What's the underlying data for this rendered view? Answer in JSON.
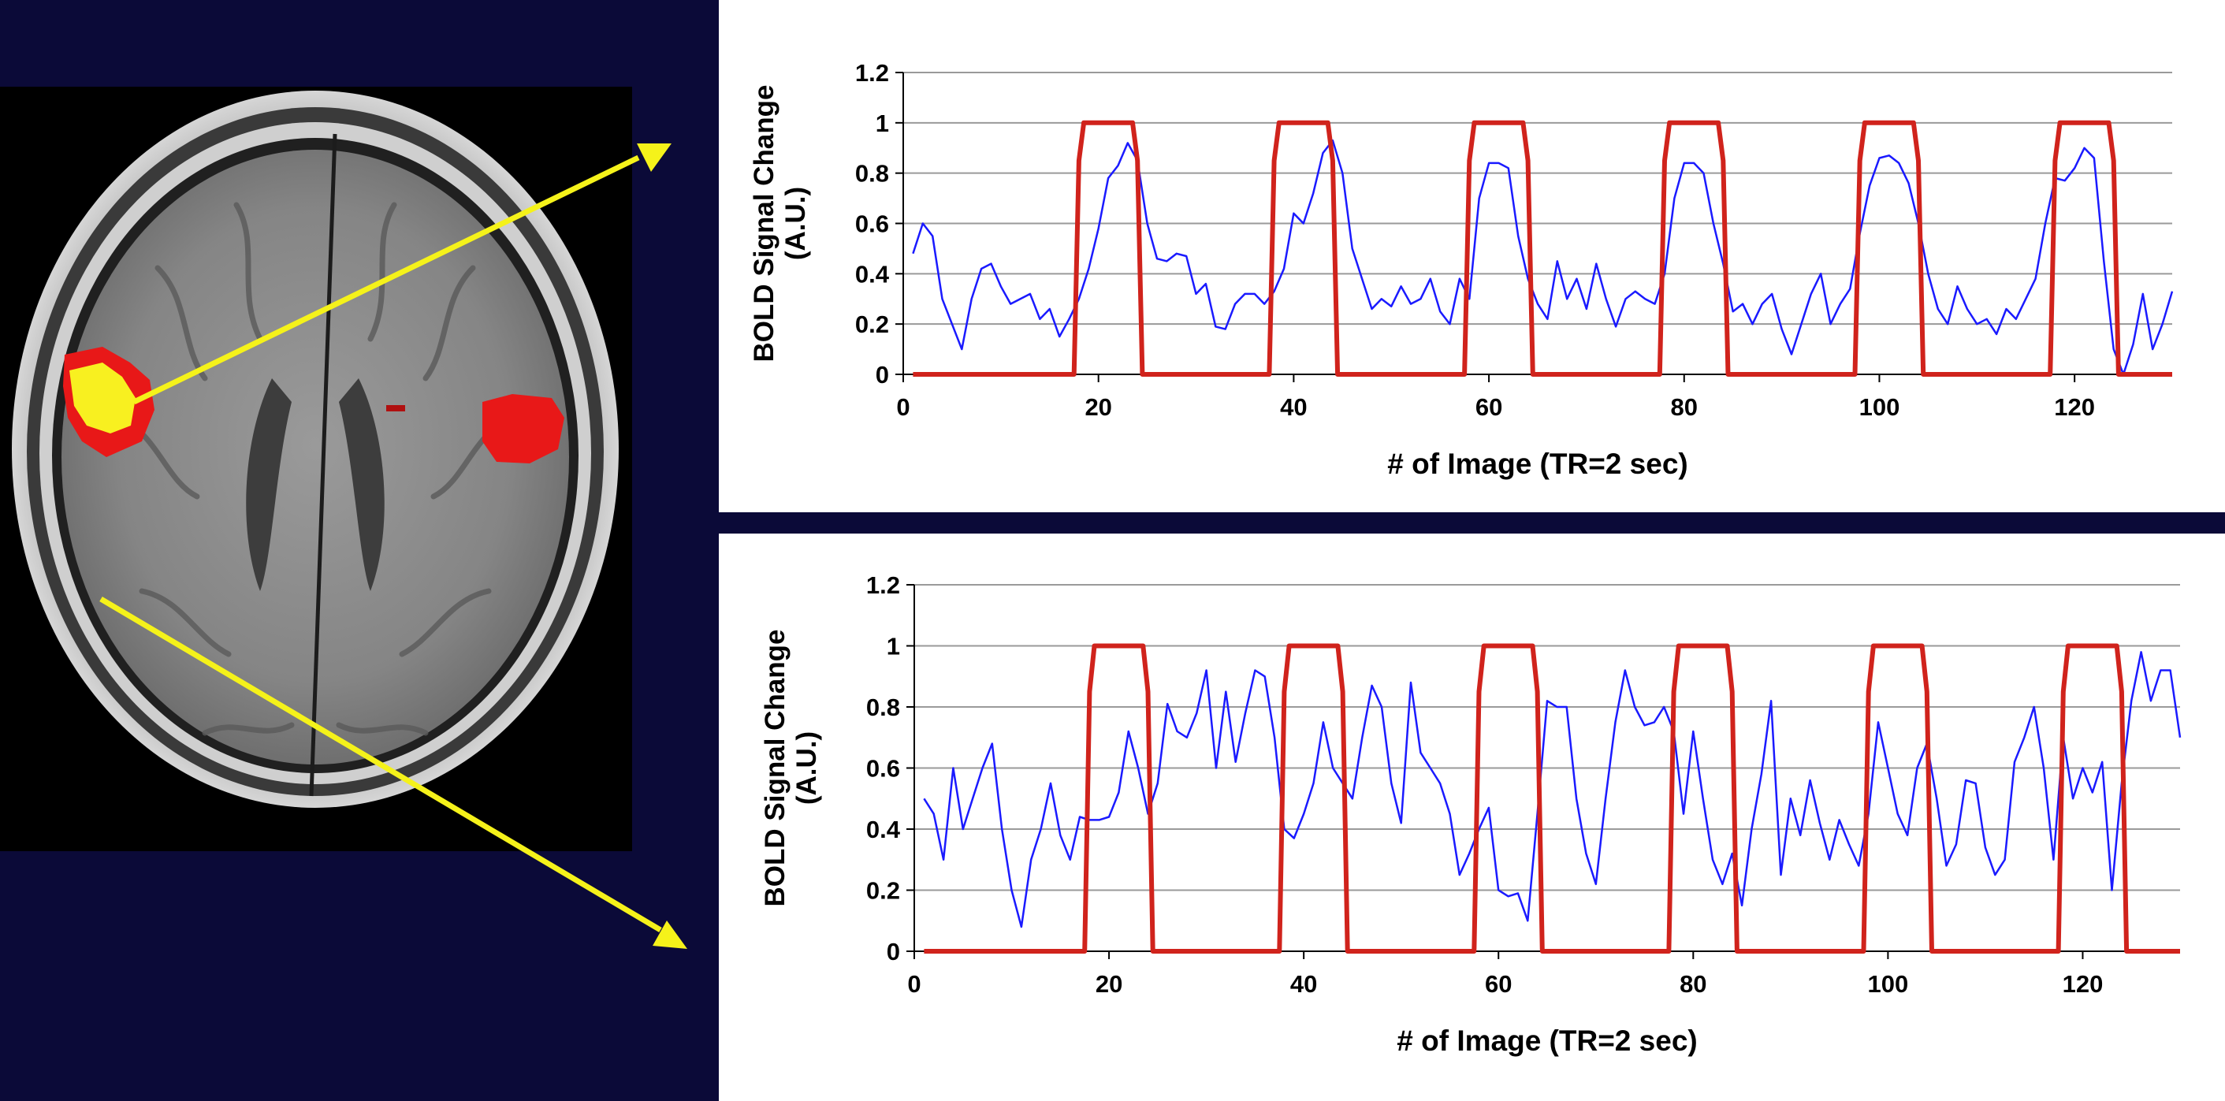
{
  "colors": {
    "background": "#0b0a38",
    "chart_bg": "#ffffff",
    "signal": "#1a1aff",
    "stimulus": "#d0231c",
    "arrow": "#f5f21a",
    "activation_red": "#e81818",
    "activation_yellow": "#f8f020"
  },
  "chart_data": [
    {
      "type": "line",
      "xlabel": "# of Image (TR=2 sec)",
      "ylabel": "BOLD Signal Change",
      "ylabel_unit": "(A.U.)",
      "xlim": [
        0,
        130
      ],
      "ylim": [
        0,
        1.2
      ],
      "xticks": [
        0,
        20,
        40,
        60,
        80,
        100,
        120
      ],
      "yticks": [
        0,
        0.2,
        0.4,
        0.6,
        0.8,
        1,
        1.2
      ],
      "ytick_labels": [
        "0",
        "0.2",
        "0.4",
        "0.6",
        "0.8",
        "1",
        "1.2"
      ],
      "grid": "horizontal",
      "series": [
        {
          "role": "bold-signal",
          "x": [
            1,
            2,
            3,
            4,
            5,
            6,
            7,
            8,
            9,
            10,
            11,
            12,
            13,
            14,
            15,
            16,
            17,
            18,
            19,
            20,
            21,
            22,
            23,
            24,
            25,
            26,
            27,
            28,
            29,
            30,
            31,
            32,
            33,
            34,
            35,
            36,
            37,
            38,
            39,
            40,
            41,
            42,
            43,
            44,
            45,
            46,
            47,
            48,
            49,
            50,
            51,
            52,
            53,
            54,
            55,
            56,
            57,
            58,
            59,
            60,
            61,
            62,
            63,
            64,
            65,
            66,
            67,
            68,
            69,
            70,
            71,
            72,
            73,
            74,
            75,
            76,
            77,
            78,
            79,
            80,
            81,
            82,
            83,
            84,
            85,
            86,
            87,
            88,
            89,
            90,
            91,
            92,
            93,
            94,
            95,
            96,
            97,
            98,
            99,
            100,
            101,
            102,
            103,
            104,
            105,
            106,
            107,
            108,
            109,
            110,
            111,
            112,
            113,
            114,
            115,
            116,
            117,
            118,
            119,
            120,
            121,
            122,
            123,
            124,
            125,
            126,
            127,
            128,
            129,
            130
          ],
          "y": [
            0.48,
            0.6,
            0.55,
            0.3,
            0.2,
            0.1,
            0.3,
            0.42,
            0.44,
            0.35,
            0.28,
            0.3,
            0.32,
            0.22,
            0.26,
            0.15,
            0.22,
            0.3,
            0.42,
            0.58,
            0.78,
            0.83,
            0.92,
            0.85,
            0.6,
            0.46,
            0.45,
            0.48,
            0.47,
            0.32,
            0.36,
            0.19,
            0.18,
            0.28,
            0.32,
            0.32,
            0.28,
            0.33,
            0.42,
            0.64,
            0.6,
            0.72,
            0.88,
            0.93,
            0.8,
            0.5,
            0.38,
            0.26,
            0.3,
            0.27,
            0.35,
            0.28,
            0.3,
            0.38,
            0.25,
            0.2,
            0.38,
            0.3,
            0.7,
            0.84,
            0.84,
            0.82,
            0.55,
            0.38,
            0.28,
            0.22,
            0.45,
            0.3,
            0.38,
            0.26,
            0.44,
            0.3,
            0.19,
            0.3,
            0.33,
            0.3,
            0.28,
            0.4,
            0.7,
            0.84,
            0.84,
            0.8,
            0.6,
            0.44,
            0.25,
            0.28,
            0.2,
            0.28,
            0.32,
            0.18,
            0.08,
            0.2,
            0.32,
            0.4,
            0.2,
            0.28,
            0.34,
            0.56,
            0.75,
            0.86,
            0.87,
            0.84,
            0.76,
            0.6,
            0.4,
            0.26,
            0.2,
            0.35,
            0.26,
            0.2,
            0.22,
            0.16,
            0.26,
            0.22,
            0.3,
            0.38,
            0.6,
            0.78,
            0.77,
            0.82,
            0.9,
            0.86,
            0.45,
            0.1,
            0.0,
            0.12,
            0.32,
            0.1,
            0.2,
            0.33
          ]
        },
        {
          "role": "stimulus-block",
          "x": [
            1,
            17.5,
            18,
            18.5,
            23.5,
            24,
            24.5,
            37.5,
            38,
            38.5,
            43.5,
            44,
            44.5,
            57.5,
            58,
            58.5,
            63.5,
            64,
            64.5,
            77.5,
            78,
            78.5,
            83.5,
            84,
            84.5,
            97.5,
            98,
            98.5,
            103.5,
            104,
            104.5,
            117.5,
            118,
            118.5,
            123.5,
            124,
            124.5,
            130
          ],
          "y": [
            0,
            0,
            0.85,
            1,
            1,
            0.85,
            0,
            0,
            0.85,
            1,
            1,
            0.85,
            0,
            0,
            0.85,
            1,
            1,
            0.85,
            0,
            0,
            0.85,
            1,
            1,
            0.85,
            0,
            0,
            0.85,
            1,
            1,
            0.85,
            0,
            0,
            0.85,
            1,
            1,
            0.85,
            0,
            0
          ]
        }
      ]
    },
    {
      "type": "line",
      "xlabel": "# of Image (TR=2 sec)",
      "ylabel": "BOLD Signal Change",
      "ylabel_unit": "(A.U.)",
      "xlim": [
        0,
        130
      ],
      "ylim": [
        0,
        1.2
      ],
      "xticks": [
        0,
        20,
        40,
        60,
        80,
        100,
        120
      ],
      "yticks": [
        0,
        0.2,
        0.4,
        0.6,
        0.8,
        1,
        1.2
      ],
      "ytick_labels": [
        "0",
        "0.2",
        "0.4",
        "0.6",
        "0.8",
        "1",
        "1.2"
      ],
      "grid": "horizontal",
      "series": [
        {
          "role": "bold-signal",
          "x": [
            1,
            2,
            3,
            4,
            5,
            6,
            7,
            8,
            9,
            10,
            11,
            12,
            13,
            14,
            15,
            16,
            17,
            18,
            19,
            20,
            21,
            22,
            23,
            24,
            25,
            26,
            27,
            28,
            29,
            30,
            31,
            32,
            33,
            34,
            35,
            36,
            37,
            38,
            39,
            40,
            41,
            42,
            43,
            44,
            45,
            46,
            47,
            48,
            49,
            50,
            51,
            52,
            53,
            54,
            55,
            56,
            57,
            58,
            59,
            60,
            61,
            62,
            63,
            64,
            65,
            66,
            67,
            68,
            69,
            70,
            71,
            72,
            73,
            74,
            75,
            76,
            77,
            78,
            79,
            80,
            81,
            82,
            83,
            84,
            85,
            86,
            87,
            88,
            89,
            90,
            91,
            92,
            93,
            94,
            95,
            96,
            97,
            98,
            99,
            100,
            101,
            102,
            103,
            104,
            105,
            106,
            107,
            108,
            109,
            110,
            111,
            112,
            113,
            114,
            115,
            116,
            117,
            118,
            119,
            120,
            121,
            122,
            123,
            124,
            125,
            126,
            127,
            128,
            129,
            130
          ],
          "y": [
            0.5,
            0.45,
            0.3,
            0.6,
            0.4,
            0.5,
            0.6,
            0.68,
            0.4,
            0.2,
            0.08,
            0.3,
            0.4,
            0.55,
            0.38,
            0.3,
            0.44,
            0.43,
            0.43,
            0.44,
            0.52,
            0.72,
            0.6,
            0.45,
            0.55,
            0.81,
            0.72,
            0.7,
            0.78,
            0.92,
            0.6,
            0.85,
            0.62,
            0.78,
            0.92,
            0.9,
            0.7,
            0.4,
            0.37,
            0.45,
            0.55,
            0.75,
            0.6,
            0.55,
            0.5,
            0.7,
            0.87,
            0.8,
            0.55,
            0.42,
            0.88,
            0.65,
            0.6,
            0.55,
            0.45,
            0.25,
            0.32,
            0.4,
            0.47,
            0.2,
            0.18,
            0.19,
            0.1,
            0.45,
            0.82,
            0.8,
            0.8,
            0.5,
            0.32,
            0.22,
            0.5,
            0.75,
            0.92,
            0.8,
            0.74,
            0.75,
            0.8,
            0.72,
            0.45,
            0.72,
            0.5,
            0.3,
            0.22,
            0.32,
            0.15,
            0.4,
            0.58,
            0.82,
            0.25,
            0.5,
            0.38,
            0.56,
            0.42,
            0.3,
            0.43,
            0.35,
            0.28,
            0.45,
            0.75,
            0.6,
            0.45,
            0.38,
            0.6,
            0.68,
            0.5,
            0.28,
            0.35,
            0.56,
            0.55,
            0.34,
            0.25,
            0.3,
            0.62,
            0.7,
            0.8,
            0.6,
            0.3,
            0.7,
            0.5,
            0.6,
            0.52,
            0.62,
            0.2,
            0.55,
            0.82,
            0.98,
            0.82,
            0.92,
            0.92,
            0.7
          ]
        },
        {
          "role": "stimulus-block",
          "x": [
            1,
            17.5,
            18,
            18.5,
            23.5,
            24,
            24.5,
            37.5,
            38,
            38.5,
            43.5,
            44,
            44.5,
            57.5,
            58,
            58.5,
            63.5,
            64,
            64.5,
            77.5,
            78,
            78.5,
            83.5,
            84,
            84.5,
            97.5,
            98,
            98.5,
            103.5,
            104,
            104.5,
            117.5,
            118,
            118.5,
            123.5,
            124,
            124.5,
            130
          ],
          "y": [
            0,
            0,
            0.85,
            1,
            1,
            0.85,
            0,
            0,
            0.85,
            1,
            1,
            0.85,
            0,
            0,
            0.85,
            1,
            1,
            0.85,
            0,
            0,
            0.85,
            1,
            1,
            0.85,
            0,
            0,
            0.85,
            1,
            1,
            0.85,
            0,
            0,
            0.85,
            1,
            1,
            0.85,
            0,
            0
          ]
        }
      ]
    }
  ]
}
